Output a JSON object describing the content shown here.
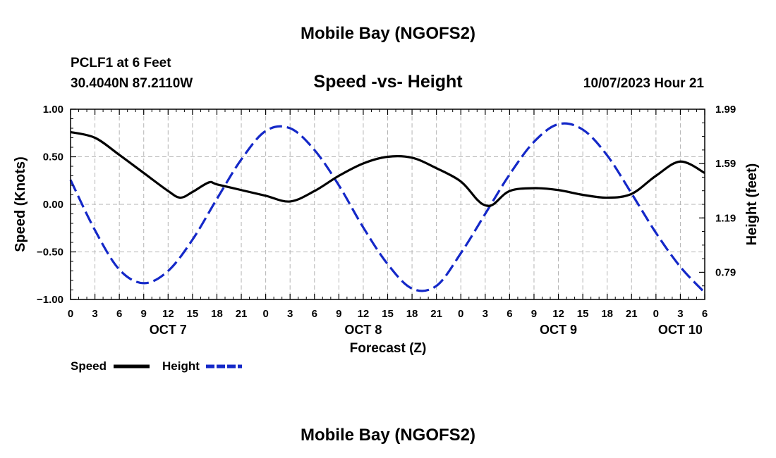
{
  "page_title": "Mobile Bay (NGOFS2)",
  "footer_title": "Mobile Bay (NGOFS2)",
  "station": {
    "name": "PCLF1 at 6 Feet",
    "coords": "30.4040N  87.2110W"
  },
  "timestamp": "10/07/2023 Hour 21",
  "chart_data": {
    "type": "line",
    "title": "Speed -vs- Height",
    "xlabel": "Forecast (Z)",
    "ylabel": "Speed (Knots)",
    "y2label": "Height (feet)",
    "x_hours_range": [
      0,
      78
    ],
    "x_tick_labels": [
      "0",
      "3",
      "6",
      "9",
      "12",
      "15",
      "18",
      "21",
      "0",
      "3",
      "6",
      "9",
      "12",
      "15",
      "18",
      "21",
      "0",
      "3",
      "6",
      "9",
      "12",
      "15",
      "18",
      "21",
      "0",
      "3",
      "6"
    ],
    "day_labels": [
      {
        "label": "OCT 7",
        "hour": 12
      },
      {
        "label": "OCT 8",
        "hour": 36
      },
      {
        "label": "OCT 9",
        "hour": 60
      },
      {
        "label": "OCT 10",
        "hour": 75
      }
    ],
    "ylim": [
      -1.0,
      1.0
    ],
    "y_ticks": [
      1.0,
      0.5,
      0.0,
      -0.5,
      -1.0
    ],
    "y_tick_labels": [
      "1.00",
      "0.50",
      "0.00",
      "−0.50",
      "−1.00"
    ],
    "y2lim": [
      0.59,
      1.99
    ],
    "y2_ticks": [
      1.99,
      1.59,
      1.19,
      0.79
    ],
    "y2_tick_labels": [
      "1.99",
      "1.59",
      "1.19",
      "0.79"
    ],
    "grid": true,
    "series": [
      {
        "name": "Speed",
        "axis": "left",
        "color": "#000000",
        "style": "solid",
        "x": [
          0,
          3,
          6,
          9,
          12,
          13.5,
          15,
          17,
          18,
          21,
          24,
          27,
          30,
          33,
          36,
          39,
          42,
          45,
          48,
          50,
          51,
          52,
          54,
          57,
          60,
          63,
          66,
          69,
          72,
          75,
          78
        ],
        "y": [
          0.76,
          0.7,
          0.52,
          0.33,
          0.14,
          0.07,
          0.13,
          0.23,
          0.21,
          0.15,
          0.09,
          0.03,
          0.14,
          0.3,
          0.43,
          0.5,
          0.49,
          0.38,
          0.24,
          0.05,
          -0.01,
          0.0,
          0.14,
          0.17,
          0.15,
          0.1,
          0.07,
          0.11,
          0.3,
          0.45,
          0.33
        ]
      },
      {
        "name": "Height",
        "axis": "right",
        "color": "#1428c8",
        "style": "dashed",
        "x": [
          0,
          3,
          6,
          9,
          12,
          15,
          18,
          21,
          24,
          27,
          30,
          33,
          36,
          39,
          42,
          45,
          48,
          51,
          54,
          57,
          60,
          63,
          66,
          69,
          72,
          75,
          78
        ],
        "y": [
          1.47,
          1.1,
          0.81,
          0.71,
          0.8,
          1.03,
          1.33,
          1.62,
          1.83,
          1.85,
          1.69,
          1.43,
          1.12,
          0.85,
          0.67,
          0.69,
          0.93,
          1.22,
          1.51,
          1.75,
          1.88,
          1.84,
          1.65,
          1.37,
          1.08,
          0.83,
          0.64
        ]
      }
    ],
    "legend": [
      {
        "label": "Speed",
        "color": "#000000",
        "style": "solid"
      },
      {
        "label": "Height",
        "color": "#1428c8",
        "style": "dashed"
      }
    ],
    "legend_position": "bottom-left"
  }
}
